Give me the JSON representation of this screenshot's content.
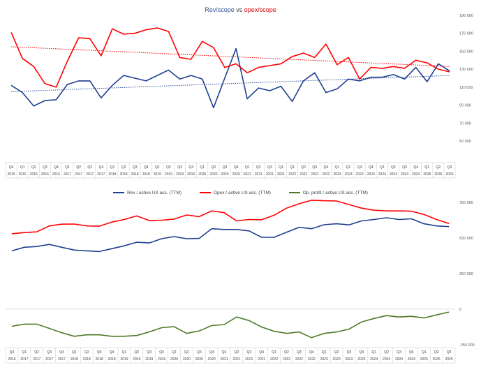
{
  "chart_data": [
    {
      "type": "line",
      "title_parts": [
        {
          "text": "Rev/scope",
          "color": "#2f5597"
        },
        {
          "text": " vs ",
          "color": "#404040"
        },
        {
          "text": "opex/scope",
          "color": "#e00000"
        }
      ],
      "categories": [
        "Q4 2015",
        "Q1 2016",
        "Q2 2016",
        "Q3 2016",
        "Q4 2016",
        "Q1 2017",
        "Q2 2017",
        "Q3 2017",
        "Q4 2017",
        "Q1 2018",
        "Q2 2018",
        "Q3 2018",
        "Q4 2018",
        "Q1 2019",
        "Q2 2019",
        "Q3 2019",
        "Q4 2019",
        "Q1 2020",
        "Q2 2020",
        "Q3 2020",
        "Q4 2020",
        "Q1 2021",
        "Q2 2021",
        "Q3 2021",
        "Q4 2021",
        "Q1 2022",
        "Q2 2022",
        "Q3 2022",
        "Q4 2022",
        "Q1 2023",
        "Q2 2023",
        "Q3 2023",
        "Q4 2023",
        "Q1 2024",
        "Q2 2024",
        "Q3 2024",
        "Q4 2024",
        "Q1 2025",
        "Q2 2025",
        "Q3 2025"
      ],
      "ylim": [
        50000,
        190000
      ],
      "yticks": [
        "50 000",
        "70 000",
        "90 000",
        "110 000",
        "130 000",
        "150 000",
        "170 000",
        "190 000"
      ],
      "series": [
        {
          "color": "#1f3f8f",
          "values": [
            112000,
            104000,
            89000,
            95000,
            96000,
            113000,
            117000,
            117000,
            98000,
            112000,
            123000,
            120000,
            117000,
            123000,
            129000,
            119000,
            123000,
            119000,
            87000,
            120000,
            153000,
            97000,
            109000,
            106000,
            111000,
            94000,
            117000,
            126000,
            104000,
            108000,
            119000,
            117000,
            121000,
            121000,
            124000,
            119000,
            132000,
            116000,
            136000,
            128000
          ]
        },
        {
          "color": "#ff0000",
          "values": [
            171000,
            142000,
            133000,
            114000,
            110000,
            139000,
            165000,
            164000,
            145000,
            175000,
            169000,
            170000,
            174000,
            176000,
            172000,
            143000,
            141000,
            161000,
            154000,
            132000,
            136000,
            126000,
            132000,
            134000,
            136000,
            144000,
            148000,
            143000,
            158000,
            135000,
            143000,
            119000,
            132000,
            131000,
            133000,
            131000,
            140000,
            137000,
            130000,
            127000
          ]
        }
      ],
      "trendlines": [
        {
          "color": "#2f5597",
          "from": 105000,
          "to": 123000
        },
        {
          "color": "#ff0000",
          "from": 155000,
          "to": 133000
        }
      ]
    },
    {
      "type": "line",
      "legend": [
        "Rev / active US acc. (TTM)",
        "Opex / active US acc. (TTM)",
        "Op. profit / active US acc. (TTM)"
      ],
      "categories": [
        "Q4 2016",
        "Q1 2017",
        "Q2 2017",
        "Q3 2017",
        "Q4 2017",
        "Q1 2018",
        "Q2 2018",
        "Q3 2018",
        "Q4 2018",
        "Q1 2019",
        "Q2 2019",
        "Q3 2019",
        "Q4 2019",
        "Q1 2020",
        "Q2 2020",
        "Q3 2020",
        "Q4 2020",
        "Q1 2021",
        "Q2 2021",
        "Q3 2021",
        "Q4 2021",
        "Q1 2022",
        "Q2 2022",
        "Q3 2022",
        "Q4 2022",
        "Q1 2023",
        "Q2 2023",
        "Q3 2023",
        "Q4 2023",
        "Q1 2024",
        "Q2 2024",
        "Q3 2024",
        "Q4 2024",
        "Q1 2025",
        "Q2 2025",
        "Q3 2025"
      ],
      "ylim": [
        -250000,
        750000
      ],
      "yticks": [
        "-250 000",
        "0",
        "250 000",
        "500 000",
        "750 000"
      ],
      "series": [
        {
          "name": "Rev / active US acc. (TTM)",
          "color": "#1f3f8f",
          "values": [
            410000,
            435000,
            440000,
            455000,
            435000,
            415000,
            410000,
            405000,
            425000,
            445000,
            470000,
            465000,
            495000,
            510000,
            495000,
            497000,
            565000,
            560000,
            560000,
            550000,
            505000,
            505000,
            540000,
            575000,
            565000,
            593000,
            600000,
            592000,
            620000,
            630000,
            642000,
            630000,
            635000,
            600000,
            585000,
            580000
          ]
        },
        {
          "name": "Opex / active US acc. (TTM)",
          "color": "#ff0000",
          "values": [
            530000,
            538000,
            543000,
            585000,
            597000,
            598000,
            585000,
            583000,
            612000,
            630000,
            655000,
            623000,
            625000,
            633000,
            662000,
            650000,
            690000,
            678000,
            620000,
            630000,
            628000,
            660000,
            710000,
            740000,
            765000,
            762000,
            760000,
            735000,
            710000,
            695000,
            690000,
            690000,
            688000,
            665000,
            630000,
            602000
          ]
        },
        {
          "name": "Op. profit / active US acc. (TTM)",
          "color": "#4e7a28",
          "values": [
            -120000,
            -105000,
            -105000,
            -135000,
            -165000,
            -190000,
            -180000,
            -180000,
            -190000,
            -190000,
            -185000,
            -160000,
            -130000,
            -123000,
            -170000,
            -153000,
            -115000,
            -108000,
            -55000,
            -80000,
            -125000,
            -155000,
            -170000,
            -160000,
            -200000,
            -170000,
            -160000,
            -140000,
            -90000,
            -65000,
            -45000,
            -55000,
            -50000,
            -62000,
            -40000,
            -20000
          ]
        }
      ]
    }
  ]
}
